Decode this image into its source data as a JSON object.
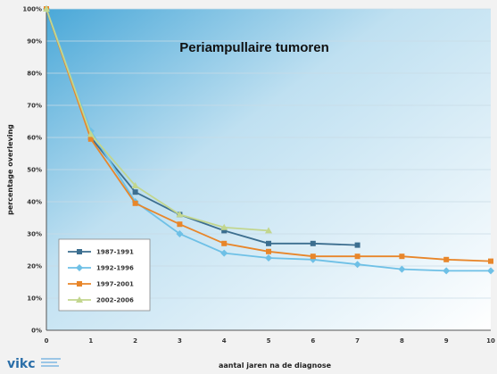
{
  "chart_data": {
    "type": "line",
    "title": "Periampullaire tumoren",
    "xlabel": "aantal jaren na de diagnose",
    "ylabel": "percentage overleving",
    "x": [
      0,
      1,
      2,
      3,
      4,
      5,
      6,
      7,
      8,
      9,
      10
    ],
    "xlim": [
      0,
      10
    ],
    "ylim": [
      0,
      100
    ],
    "yticks": [
      "0%",
      "10%",
      "20%",
      "30%",
      "40%",
      "50%",
      "60%",
      "70%",
      "80%",
      "90%",
      "100%"
    ],
    "xticks": [
      "0",
      "1",
      "2",
      "3",
      "4",
      "5",
      "6",
      "7",
      "8",
      "9",
      "10"
    ],
    "grid": true,
    "legend_position": "bottom-left",
    "series": [
      {
        "name": "1987-1991",
        "color": "#3c6e8f",
        "marker": "square",
        "x": [
          0,
          1,
          2,
          3,
          4,
          5,
          6,
          7
        ],
        "values": [
          100,
          60,
          43,
          36,
          31,
          27,
          27,
          26.5
        ]
      },
      {
        "name": "1992-1996",
        "color": "#6ec0e6",
        "marker": "diamond",
        "x": [
          0,
          1,
          2,
          3,
          4,
          5,
          6,
          7,
          8,
          9,
          10
        ],
        "values": [
          100,
          62,
          40,
          30,
          24,
          22.5,
          22,
          20.5,
          19,
          18.5,
          18.5
        ]
      },
      {
        "name": "1997-2001",
        "color": "#e8862a",
        "marker": "square",
        "x": [
          0,
          1,
          2,
          3,
          4,
          5,
          6,
          7,
          8,
          9,
          10
        ],
        "values": [
          100,
          59.5,
          39.5,
          33,
          27,
          24.5,
          23,
          23,
          23,
          22,
          21.5
        ]
      },
      {
        "name": "2002-2006",
        "color": "#c2d68e",
        "marker": "triangle",
        "x": [
          0,
          1,
          2,
          3,
          4,
          5
        ],
        "values": [
          100,
          61,
          45,
          36,
          32,
          31
        ]
      }
    ]
  },
  "logo": {
    "text": "vikc",
    "icon": "vikc-logo"
  }
}
